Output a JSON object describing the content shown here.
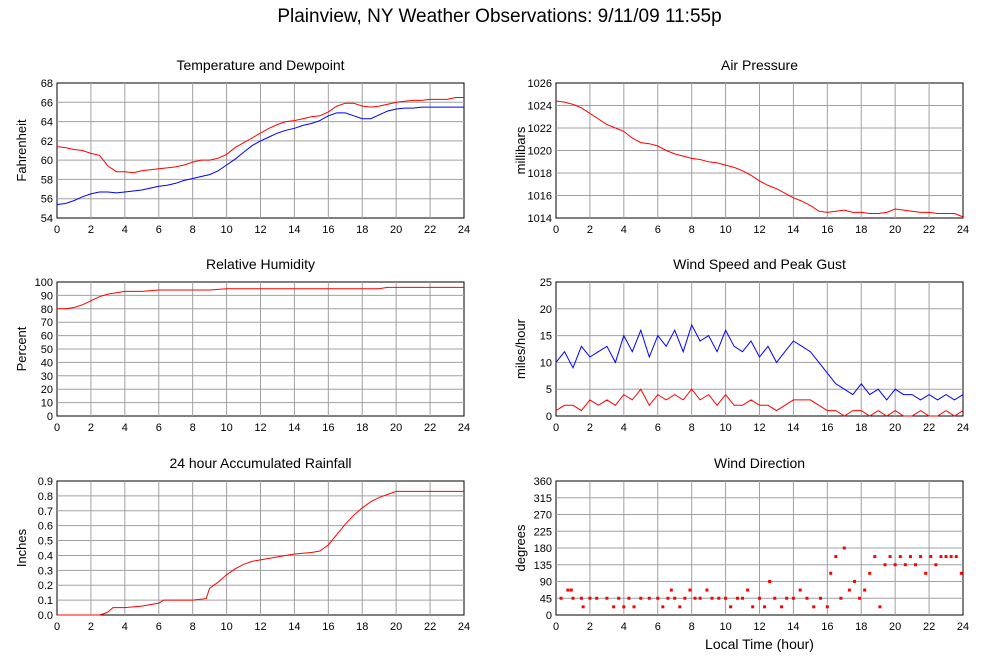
{
  "page": {
    "title": "Plainview, NY Weather Observations: 9/11/09 11:55p",
    "xlabel": "Local Time (hour)"
  },
  "chart_data": [
    {
      "type": "line",
      "title": "Temperature and Dewpoint",
      "xlabel": "",
      "ylabel": "Fahrenheit",
      "xlim": [
        0,
        24
      ],
      "ylim": [
        54,
        68
      ],
      "xticks": [
        0,
        2,
        4,
        6,
        8,
        10,
        12,
        14,
        16,
        18,
        20,
        22,
        24
      ],
      "yticks": [
        54,
        56,
        58,
        60,
        62,
        64,
        66,
        68
      ],
      "grid": true,
      "series": [
        {
          "color": "#ff0000",
          "x": [
            0,
            0.5,
            1.0,
            1.5,
            2.0,
            2.5,
            3.0,
            3.5,
            4.0,
            4.5,
            5.0,
            5.5,
            6.0,
            6.5,
            7.0,
            7.5,
            8.0,
            8.5,
            9.0,
            9.5,
            10.0,
            10.5,
            11.0,
            11.5,
            12.0,
            12.5,
            13.0,
            13.5,
            14.0,
            14.5,
            15.0,
            15.5,
            16.0,
            16.5,
            17.0,
            17.5,
            18.0,
            18.5,
            19.0,
            19.5,
            20.0,
            20.5,
            21.0,
            21.5,
            22.0,
            22.5,
            23.0,
            23.5,
            24.0
          ],
          "values": [
            61.4,
            61.3,
            61.1,
            61.0,
            60.7,
            60.5,
            59.4,
            58.8,
            58.8,
            58.7,
            58.9,
            59.0,
            59.1,
            59.2,
            59.3,
            59.5,
            59.8,
            60.0,
            60.0,
            60.2,
            60.6,
            61.3,
            61.8,
            62.3,
            62.8,
            63.3,
            63.7,
            64.0,
            64.1,
            64.3,
            64.5,
            64.6,
            65.0,
            65.6,
            65.9,
            65.9,
            65.6,
            65.5,
            65.6,
            65.8,
            66.0,
            66.1,
            66.2,
            66.2,
            66.3,
            66.3,
            66.3,
            66.5,
            66.5
          ]
        },
        {
          "color": "#0000ff",
          "x": [
            0,
            0.5,
            1.0,
            1.5,
            2.0,
            2.5,
            3.0,
            3.5,
            4.0,
            4.5,
            5.0,
            5.5,
            6.0,
            6.5,
            7.0,
            7.5,
            8.0,
            8.5,
            9.0,
            9.5,
            10.0,
            10.5,
            11.0,
            11.5,
            12.0,
            12.5,
            13.0,
            13.5,
            14.0,
            14.5,
            15.0,
            15.5,
            16.0,
            16.5,
            17.0,
            17.5,
            18.0,
            18.5,
            19.0,
            19.5,
            20.0,
            20.5,
            21.0,
            21.5,
            22.0,
            22.5,
            23.0,
            23.5,
            24.0
          ],
          "values": [
            55.4,
            55.5,
            55.8,
            56.2,
            56.5,
            56.7,
            56.7,
            56.6,
            56.7,
            56.8,
            56.9,
            57.1,
            57.3,
            57.4,
            57.6,
            57.9,
            58.1,
            58.3,
            58.5,
            58.9,
            59.5,
            60.1,
            60.8,
            61.5,
            62.0,
            62.4,
            62.8,
            63.1,
            63.3,
            63.6,
            63.8,
            64.1,
            64.6,
            64.9,
            64.9,
            64.6,
            64.3,
            64.3,
            64.7,
            65.1,
            65.3,
            65.4,
            65.4,
            65.5,
            65.5,
            65.5,
            65.5,
            65.5,
            65.5
          ]
        }
      ]
    },
    {
      "type": "line",
      "title": "Air Pressure",
      "xlabel": "",
      "ylabel": "millibars",
      "xlim": [
        0,
        24
      ],
      "ylim": [
        1014,
        1026
      ],
      "xticks": [
        0,
        2,
        4,
        6,
        8,
        10,
        12,
        14,
        16,
        18,
        20,
        22,
        24
      ],
      "yticks": [
        1014,
        1016,
        1018,
        1020,
        1022,
        1024,
        1026
      ],
      "grid": true,
      "series": [
        {
          "color": "#ff0000",
          "x": [
            0,
            0.5,
            1.0,
            1.5,
            2.0,
            2.5,
            3.0,
            3.5,
            4.0,
            4.5,
            5.0,
            5.5,
            6.0,
            6.5,
            7.0,
            7.5,
            8.0,
            8.5,
            9.0,
            9.5,
            10.0,
            10.5,
            11.0,
            11.5,
            12.0,
            12.5,
            13.0,
            13.5,
            14.0,
            14.5,
            15.0,
            15.5,
            16.0,
            16.5,
            17.0,
            17.5,
            18.0,
            18.5,
            19.0,
            19.5,
            20.0,
            20.5,
            21.0,
            21.5,
            22.0,
            22.5,
            23.0,
            23.5,
            24.0
          ],
          "values": [
            1024.4,
            1024.3,
            1024.1,
            1023.8,
            1023.3,
            1022.8,
            1022.3,
            1022.0,
            1021.7,
            1021.1,
            1020.7,
            1020.6,
            1020.4,
            1020.0,
            1019.7,
            1019.5,
            1019.3,
            1019.2,
            1019.0,
            1018.9,
            1018.7,
            1018.5,
            1018.2,
            1017.8,
            1017.3,
            1016.9,
            1016.6,
            1016.2,
            1015.8,
            1015.5,
            1015.1,
            1014.6,
            1014.5,
            1014.6,
            1014.7,
            1014.5,
            1014.5,
            1014.4,
            1014.4,
            1014.5,
            1014.8,
            1014.7,
            1014.6,
            1014.5,
            1014.5,
            1014.4,
            1014.4,
            1014.4,
            1014.1
          ]
        }
      ]
    },
    {
      "type": "line",
      "title": "Relative Humidity",
      "xlabel": "",
      "ylabel": "Percent",
      "xlim": [
        0,
        24
      ],
      "ylim": [
        0,
        100
      ],
      "xticks": [
        0,
        2,
        4,
        6,
        8,
        10,
        12,
        14,
        16,
        18,
        20,
        22,
        24
      ],
      "yticks": [
        0,
        10,
        20,
        30,
        40,
        50,
        60,
        70,
        80,
        90,
        100
      ],
      "grid": true,
      "series": [
        {
          "color": "#ff0000",
          "x": [
            0,
            0.5,
            1.0,
            1.5,
            2.0,
            2.5,
            3.0,
            3.5,
            4.0,
            5.0,
            6.0,
            7.0,
            8.0,
            9.0,
            10.0,
            11.0,
            12.0,
            13.0,
            14.0,
            15.0,
            16.0,
            17.0,
            18.0,
            19.0,
            19.5,
            20.0,
            21.0,
            22.0,
            23.0,
            24.0
          ],
          "values": [
            80,
            80,
            81,
            83,
            86,
            89,
            91,
            92,
            93,
            93,
            94,
            94,
            94,
            94,
            95,
            95,
            95,
            95,
            95,
            95,
            95,
            95,
            95,
            95,
            96,
            96,
            96,
            96,
            96,
            96
          ]
        }
      ]
    },
    {
      "type": "line",
      "title": "Wind Speed and Peak Gust",
      "xlabel": "",
      "ylabel": "miles/hour",
      "xlim": [
        0,
        24
      ],
      "ylim": [
        0,
        25
      ],
      "xticks": [
        0,
        2,
        4,
        6,
        8,
        10,
        12,
        14,
        16,
        18,
        20,
        22,
        24
      ],
      "yticks": [
        0,
        5,
        10,
        15,
        20,
        25
      ],
      "grid": true,
      "series": [
        {
          "color": "#0000ff",
          "x": [
            0,
            0.5,
            1.0,
            1.5,
            2.0,
            2.5,
            3.0,
            3.5,
            4.0,
            4.5,
            5.0,
            5.5,
            6.0,
            6.5,
            7.0,
            7.5,
            8.0,
            8.5,
            9.0,
            9.5,
            10.0,
            10.5,
            11.0,
            11.5,
            12.0,
            12.5,
            13.0,
            13.5,
            14.0,
            14.5,
            15.0,
            15.5,
            16.0,
            16.5,
            17.0,
            17.5,
            18.0,
            18.5,
            19.0,
            19.5,
            20.0,
            20.5,
            21.0,
            21.5,
            22.0,
            22.5,
            23.0,
            23.5,
            24.0
          ],
          "values": [
            10,
            12,
            9,
            13,
            11,
            12,
            13,
            10,
            15,
            12,
            16,
            11,
            15,
            13,
            16,
            12,
            17,
            14,
            15,
            12,
            16,
            13,
            12,
            14,
            11,
            13,
            10,
            12,
            14,
            13,
            12,
            10,
            8,
            6,
            5,
            4,
            6,
            4,
            5,
            3,
            5,
            4,
            4,
            3,
            4,
            3,
            4,
            3,
            4
          ]
        },
        {
          "color": "#ff0000",
          "x": [
            0,
            0.5,
            1.0,
            1.5,
            2.0,
            2.5,
            3.0,
            3.5,
            4.0,
            4.5,
            5.0,
            5.5,
            6.0,
            6.5,
            7.0,
            7.5,
            8.0,
            8.5,
            9.0,
            9.5,
            10.0,
            10.5,
            11.0,
            11.5,
            12.0,
            12.5,
            13.0,
            13.5,
            14.0,
            14.5,
            15.0,
            15.5,
            16.0,
            16.5,
            17.0,
            17.5,
            18.0,
            18.5,
            19.0,
            19.5,
            20.0,
            20.5,
            21.0,
            21.5,
            22.0,
            22.5,
            23.0,
            23.5,
            24.0
          ],
          "values": [
            1,
            2,
            2,
            1,
            3,
            2,
            3,
            2,
            4,
            3,
            5,
            2,
            4,
            3,
            4,
            3,
            5,
            3,
            4,
            2,
            4,
            2,
            2,
            3,
            2,
            2,
            1,
            2,
            3,
            3,
            3,
            2,
            1,
            1,
            0,
            1,
            1,
            0,
            1,
            0,
            1,
            0,
            0,
            1,
            0,
            0,
            1,
            0,
            1
          ]
        }
      ]
    },
    {
      "type": "line",
      "title": "24 hour Accumulated Rainfall",
      "xlabel": "",
      "ylabel": "Inches",
      "xlim": [
        0,
        24
      ],
      "ylim": [
        0,
        0.9
      ],
      "xticks": [
        0,
        2,
        4,
        6,
        8,
        10,
        12,
        14,
        16,
        18,
        20,
        22,
        24
      ],
      "yticks": [
        0.0,
        0.1,
        0.2,
        0.3,
        0.4,
        0.5,
        0.6,
        0.7,
        0.8,
        0.9
      ],
      "grid": true,
      "series": [
        {
          "color": "#ff0000",
          "x": [
            0,
            2.5,
            2.8,
            3.0,
            3.3,
            4.0,
            5.0,
            5.5,
            6.0,
            6.3,
            7.0,
            8.0,
            8.8,
            9.0,
            9.5,
            10.0,
            10.5,
            11.0,
            11.5,
            12.0,
            13.0,
            14.0,
            15.0,
            15.5,
            16.0,
            16.5,
            17.0,
            17.5,
            18.0,
            18.5,
            19.0,
            19.5,
            20.0,
            20.5,
            21.0,
            22.0,
            23.0,
            24.0
          ],
          "values": [
            0.0,
            0.0,
            0.01,
            0.02,
            0.05,
            0.05,
            0.06,
            0.07,
            0.08,
            0.1,
            0.1,
            0.1,
            0.11,
            0.18,
            0.22,
            0.27,
            0.31,
            0.34,
            0.36,
            0.37,
            0.39,
            0.41,
            0.42,
            0.43,
            0.47,
            0.54,
            0.61,
            0.67,
            0.72,
            0.76,
            0.79,
            0.81,
            0.83,
            0.83,
            0.83,
            0.83,
            0.83,
            0.83
          ]
        }
      ]
    },
    {
      "type": "scatter",
      "title": "Wind Direction",
      "xlabel": "Local Time (hour)",
      "ylabel": "degrees",
      "xlim": [
        0,
        24
      ],
      "ylim": [
        0,
        360
      ],
      "xticks": [
        0,
        2,
        4,
        6,
        8,
        10,
        12,
        14,
        16,
        18,
        20,
        22,
        24
      ],
      "yticks": [
        0,
        45,
        90,
        135,
        180,
        225,
        270,
        315,
        360
      ],
      "grid": true,
      "series": [
        {
          "color": "#ff0000",
          "x": [
            0.3,
            0.7,
            0.9,
            1.0,
            1.5,
            1.6,
            2.0,
            2.4,
            3.0,
            3.4,
            3.7,
            4.0,
            4.3,
            4.6,
            5.0,
            5.5,
            6.0,
            6.3,
            6.6,
            6.8,
            7.0,
            7.3,
            7.6,
            7.9,
            8.2,
            8.5,
            8.9,
            9.2,
            9.6,
            10.0,
            10.3,
            10.7,
            11.0,
            11.3,
            11.6,
            12.0,
            12.3,
            12.6,
            12.9,
            13.3,
            13.6,
            14.0,
            14.4,
            14.8,
            15.2,
            15.6,
            16.0,
            16.2,
            16.5,
            16.8,
            17.0,
            17.3,
            17.6,
            17.9,
            18.2,
            18.5,
            18.8,
            19.1,
            19.4,
            19.7,
            20.0,
            20.3,
            20.6,
            20.9,
            21.2,
            21.5,
            21.8,
            22.1,
            22.4,
            22.7,
            23.0,
            23.3,
            23.6,
            23.9
          ],
          "values": [
            45,
            67,
            67,
            45,
            45,
            22,
            45,
            45,
            45,
            22,
            45,
            22,
            45,
            22,
            45,
            45,
            45,
            22,
            45,
            67,
            45,
            22,
            45,
            67,
            45,
            45,
            67,
            45,
            45,
            45,
            22,
            45,
            45,
            67,
            22,
            45,
            22,
            90,
            45,
            22,
            45,
            45,
            67,
            45,
            22,
            45,
            22,
            112,
            157,
            45,
            180,
            67,
            90,
            45,
            67,
            112,
            157,
            22,
            135,
            157,
            135,
            157,
            135,
            157,
            135,
            157,
            112,
            157,
            135,
            157,
            157,
            157,
            157,
            112
          ]
        }
      ]
    }
  ]
}
